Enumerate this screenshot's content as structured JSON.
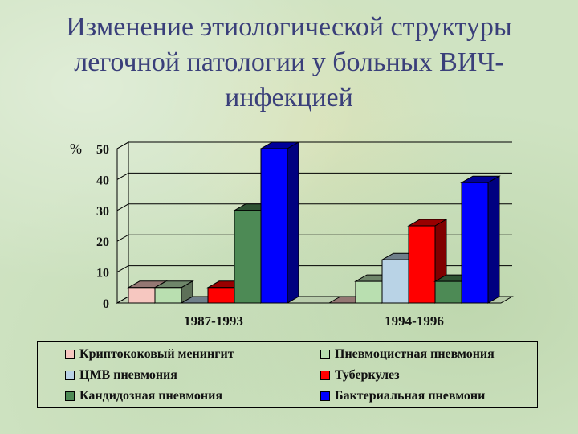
{
  "title_lines": [
    "Изменение этиологической структуры",
    "легочной патологии у больных ВИЧ-",
    "инфекцией"
  ],
  "chart_data": {
    "type": "bar",
    "title": "",
    "ylabel": "%",
    "xlabel": "",
    "ylim": [
      0,
      50
    ],
    "yticks": [
      0,
      10,
      20,
      30,
      40,
      50
    ],
    "categories": [
      "1987-1993",
      "1994-1996"
    ],
    "grid": true,
    "legend_position": "bottom",
    "series": [
      {
        "name": "Криптококовый менингит",
        "color": "#f6c7c0",
        "values": [
          5,
          0
        ]
      },
      {
        "name": "Пневмоцистная пневмония",
        "color": "#b9dfb0",
        "values": [
          5,
          7
        ]
      },
      {
        "name": "ЦМВ пневмония",
        "color": "#b9d3e6",
        "values": [
          0,
          14
        ]
      },
      {
        "name": "Туберкулез",
        "color": "#ff0000",
        "values": [
          5,
          25
        ]
      },
      {
        "name": "Кандидозная пневмония",
        "color": "#4d8a55",
        "values": [
          30,
          7
        ]
      },
      {
        "name": "Бактериальная пневмони",
        "color": "#0000ff",
        "values": [
          50,
          39
        ]
      }
    ]
  }
}
